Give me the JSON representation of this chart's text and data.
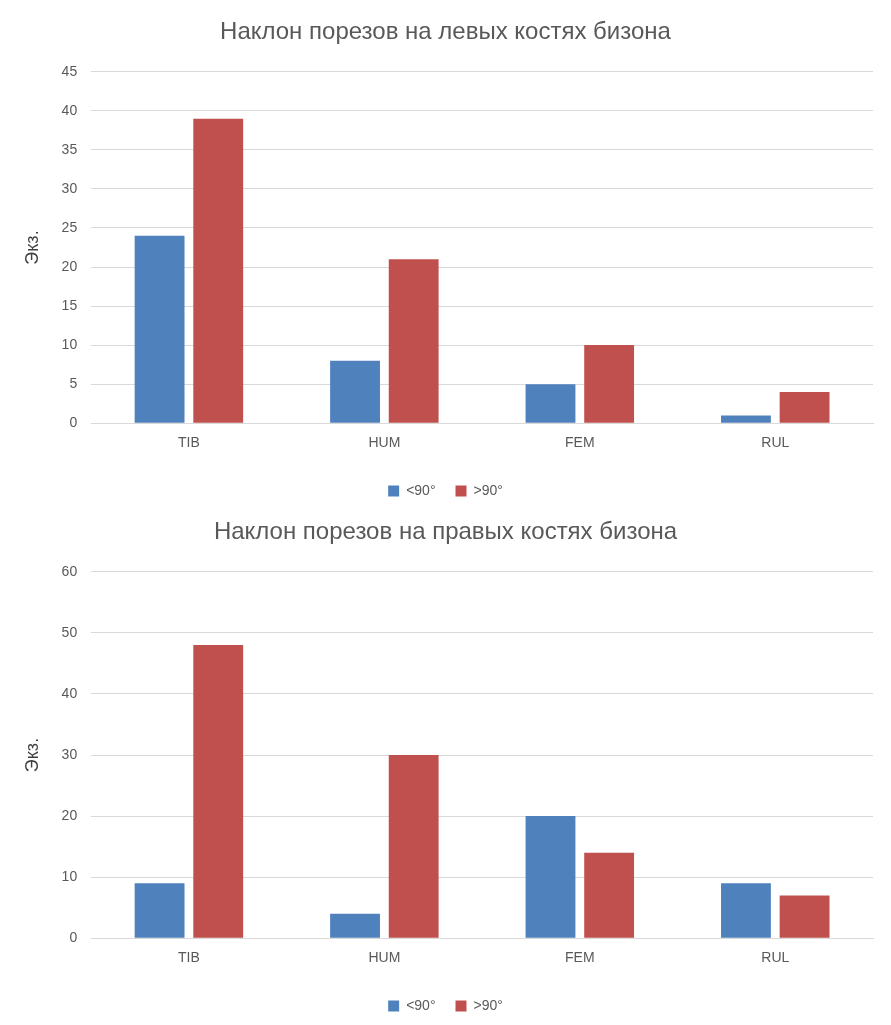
{
  "chart_data": [
    {
      "type": "bar",
      "title": "Наклон порезов на левых костях бизона",
      "ylabel": "Экз.",
      "categories": [
        "TIB",
        "HUM",
        "FEM",
        "RUL"
      ],
      "series": [
        {
          "name": "<90°",
          "color": "#4f81bd",
          "values": [
            24,
            8,
            5,
            1
          ]
        },
        {
          "name": ">90°",
          "color": "#c0504d",
          "values": [
            39,
            21,
            10,
            4
          ]
        }
      ],
      "ylim": [
        0,
        45
      ],
      "yticks": [
        0,
        5,
        10,
        15,
        20,
        25,
        30,
        35,
        40,
        45
      ],
      "grid": "y",
      "legend": "bottom"
    },
    {
      "type": "bar",
      "title": "Наклон порезов на правых костях бизона",
      "ylabel": "Экз.",
      "categories": [
        "TIB",
        "HUM",
        "FEM",
        "RUL"
      ],
      "series": [
        {
          "name": "<90°",
          "color": "#4f81bd",
          "values": [
            9,
            4,
            20,
            9
          ]
        },
        {
          "name": ">90°",
          "color": "#c0504d",
          "values": [
            48,
            30,
            14,
            7
          ]
        }
      ],
      "ylim": [
        0,
        60
      ],
      "yticks": [
        0,
        10,
        20,
        30,
        40,
        50,
        60
      ],
      "grid": "y",
      "legend": "bottom"
    }
  ]
}
